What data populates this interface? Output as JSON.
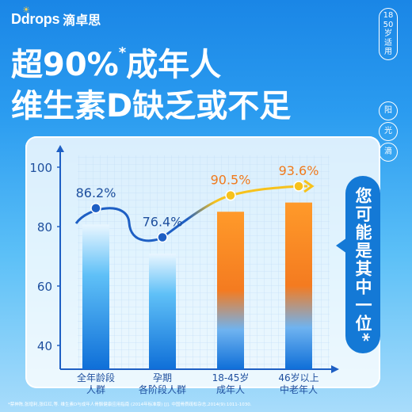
{
  "brand": {
    "logo": "Ddrops",
    "name": "滴卓思"
  },
  "headline": {
    "line1_prefix": "超90%",
    "line1_mark": "*",
    "line1_suffix": "成年人",
    "line2": "维生素D缺乏或不足"
  },
  "side_tag": {
    "age": "18 50 岁 适 用",
    "p1": "阳",
    "p2": "光",
    "p3": "滴"
  },
  "callout": "您可能是其中一位*",
  "footnote": "*禁神陈,张增利,张红红,等. 维生素D与成年人骨骼健康应用指南 (2014年标准版) [J]. 中国骨质疏松杂志,2014(9):1011-1030.",
  "colors": {
    "blue_bar": "#1a8ae6",
    "orange_bar": "#f47b20",
    "blue_line": "#1e5fc4",
    "yellow_line": "#f7c21c",
    "orange_label": "#f07a1c"
  },
  "chart_data": {
    "type": "bar",
    "categories": [
      [
        "全年龄段",
        "人群"
      ],
      [
        "孕期",
        "各阶段人群"
      ],
      [
        "18-45岁",
        "成年人"
      ],
      [
        "46岁以上",
        "中老年人"
      ]
    ],
    "values": [
      86.2,
      76.4,
      90.5,
      93.6
    ],
    "value_labels": [
      "86.2%",
      "76.4%",
      "90.5%",
      "93.6%"
    ],
    "highlight": [
      false,
      false,
      true,
      true
    ],
    "yticks": [
      40,
      60,
      80,
      100
    ],
    "ylim": [
      32,
      104
    ],
    "grid": true
  }
}
